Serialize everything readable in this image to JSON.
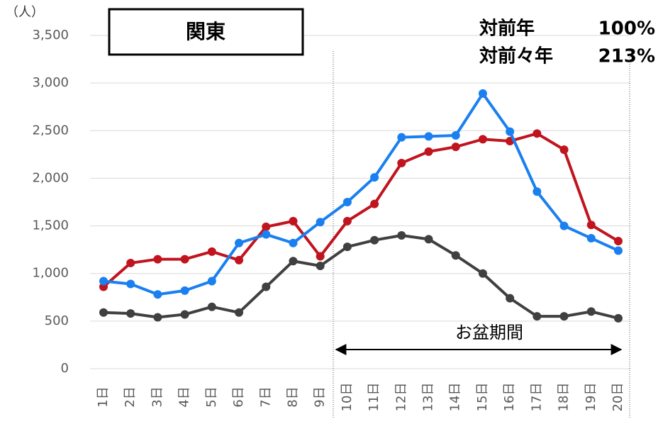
{
  "chart_data": {
    "type": "line",
    "y_unit": "（人）",
    "region": "関東",
    "comparisons": [
      {
        "label": "対前年",
        "value": "100%"
      },
      {
        "label": "対前々年",
        "value": "213%"
      }
    ],
    "period_label": "お盆期間",
    "categories": [
      "1日",
      "2日",
      "3日",
      "4日",
      "5日",
      "6日",
      "7日",
      "8日",
      "9日",
      "10日",
      "11日",
      "12日",
      "13日",
      "14日",
      "15日",
      "16日",
      "17日",
      "18日",
      "19日",
      "20日"
    ],
    "series": [
      {
        "color": "#c0141e",
        "values": [
          860,
          1110,
          1150,
          1150,
          1230,
          1140,
          1490,
          1550,
          1180,
          1550,
          1730,
          2160,
          2280,
          2330,
          2410,
          2390,
          2470,
          2300,
          1510,
          1340
        ]
      },
      {
        "color": "#1a7ff0",
        "values": [
          920,
          890,
          780,
          820,
          920,
          1320,
          1410,
          1320,
          1540,
          1750,
          2010,
          2430,
          2440,
          2450,
          2890,
          2490,
          1860,
          1500,
          1370,
          1240
        ]
      },
      {
        "color": "#404040",
        "values": [
          590,
          580,
          540,
          570,
          650,
          590,
          860,
          1130,
          1080,
          1280,
          1350,
          1400,
          1360,
          1190,
          1000,
          740,
          550,
          550,
          600,
          530
        ]
      }
    ],
    "ylim": [
      0,
      3500
    ],
    "yticks": [
      0,
      500,
      {
        "value": 1000,
        "label": "1,000"
      },
      {
        "value": 1500,
        "label": "1,500"
      },
      {
        "value": 2000,
        "label": "2,000"
      },
      {
        "value": 2500,
        "label": "2,500"
      },
      {
        "value": 3000,
        "label": "3,000"
      },
      {
        "value": 3500,
        "label": "3,500"
      }
    ],
    "grid": true
  }
}
